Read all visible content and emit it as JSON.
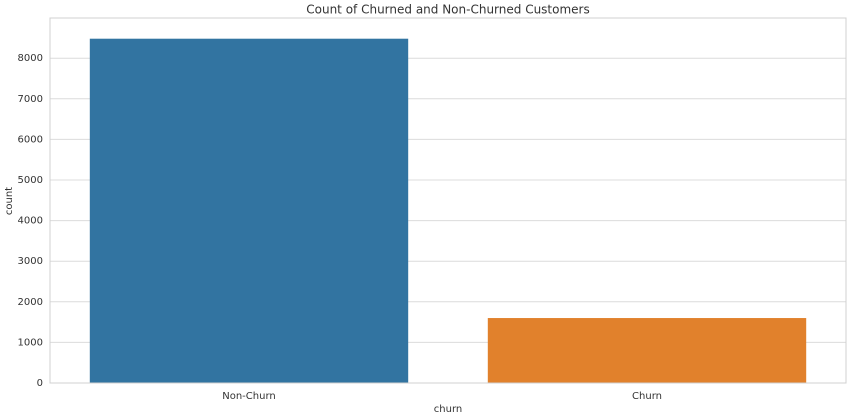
{
  "chart_data": {
    "type": "bar",
    "title": "Count of Churned and Non-Churned Customers",
    "x_label": "churn",
    "y_label": "count",
    "categories": [
      "Non-Churn",
      "Churn"
    ],
    "values": [
      8480,
      1600
    ],
    "colors": [
      "#3274a1",
      "#e1812c"
    ],
    "ylim": [
      0,
      8990
    ],
    "yticks": [
      0,
      1000,
      2000,
      3000,
      4000,
      5000,
      6000,
      7000,
      8000
    ],
    "grid": true
  }
}
